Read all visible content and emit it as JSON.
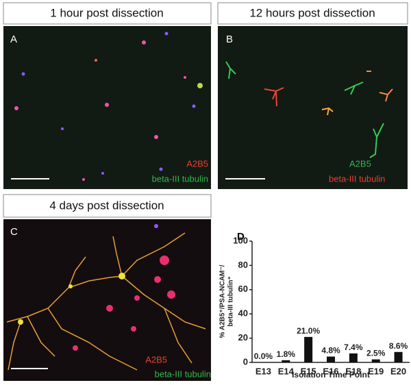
{
  "panels": [
    {
      "title": "1 hour post dissection",
      "label": "A",
      "legend": [
        "A2B5",
        "beta-III tubulin"
      ]
    },
    {
      "title": "12 hours post dissection",
      "label": "B",
      "legend": [
        "A2B5",
        "beta-III tubulin"
      ]
    },
    {
      "title": "4 days post dissection",
      "label": "C",
      "legend": [
        "A2B5",
        "beta-III tubulin"
      ]
    }
  ],
  "chart_data": {
    "type": "bar",
    "label": "D",
    "y_label": [
      "% A2B5⁺/PSA-NCAM⁻/",
      "beta-III tubulin⁺"
    ],
    "x_label": "Isolation Time Point",
    "categories": [
      "E13",
      "E14",
      "E15",
      "E16",
      "E18",
      "E19",
      "E20"
    ],
    "values": [
      0,
      1.8,
      21.0,
      4.8,
      7.4,
      2.5,
      8.6
    ],
    "value_labels": [
      "0.0%",
      "1.8%",
      "21.0%",
      "4.8%",
      "7.4%",
      "2.5%",
      "8.6%"
    ],
    "color": "#111111",
    "ylim": [
      0,
      100
    ],
    "yticks": [
      0,
      20,
      40,
      60,
      80,
      100
    ]
  }
}
